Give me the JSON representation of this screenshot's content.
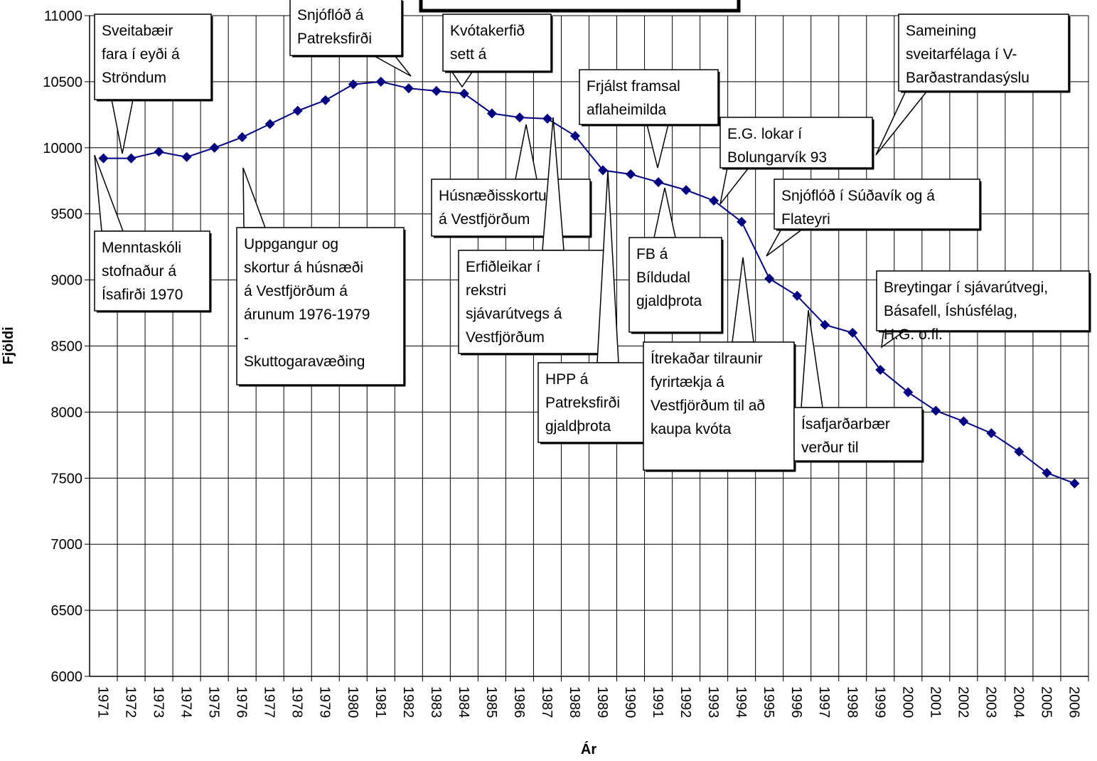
{
  "chart_data": {
    "type": "line",
    "xlabel": "Ár",
    "ylabel": "Fjöldi",
    "categories": [
      "1971",
      "1972",
      "1973",
      "1974",
      "1975",
      "1976",
      "1977",
      "1978",
      "1979",
      "1980",
      "1981",
      "1982",
      "1983",
      "1984",
      "1985",
      "1986",
      "1987",
      "1988",
      "1989",
      "1990",
      "1991",
      "1992",
      "1993",
      "1994",
      "1995",
      "1996",
      "1997",
      "1998",
      "1999",
      "2000",
      "2001",
      "2002",
      "2003",
      "2004",
      "2005",
      "2006"
    ],
    "series": [
      {
        "color": "#000080",
        "values": [
          9920,
          9920,
          9970,
          9930,
          10000,
          10080,
          10180,
          10280,
          10360,
          10480,
          10500,
          10450,
          10430,
          10410,
          10260,
          10230,
          10220,
          10090,
          9830,
          9800,
          9740,
          9680,
          9600,
          9440,
          9010,
          8880,
          8660,
          8600,
          8320,
          8150,
          8010,
          7930,
          7840,
          7700,
          7540,
          7460
        ]
      }
    ],
    "ylim": [
      6000,
      11000
    ],
    "yticks": [
      6000,
      6500,
      7000,
      7500,
      8000,
      8500,
      9000,
      9500,
      10000,
      10500,
      11000
    ],
    "grid": true,
    "annotations": [
      [
        "Sveitabæir",
        "fara í eyði á",
        "Ströndum"
      ],
      [
        "Snjóflóð á",
        "Patreksfirði"
      ],
      [
        "Kvótakerfið",
        "sett á"
      ],
      [
        "Sameining",
        "sveitarfélaga í V-",
        "Barðastrandasýslu"
      ],
      [
        "Frjálst framsal",
        "aflaheimilda"
      ],
      [
        "E.G. lokar í",
        "Bolungarvík 93"
      ],
      [
        "Menntaskóli",
        "stofnaður á",
        "Ísafirði 1970"
      ],
      [
        "Uppgangur og",
        "skortur á húsnæði",
        "á Vestfjörðum á",
        "árunum 1976-1979",
        "-",
        "Skuttogaravæðing"
      ],
      [
        "Húsnæðisskortur",
        "á Vestfjörðum"
      ],
      [
        "Erfiðleikar í",
        "rekstri",
        "sjávarútvegs á",
        "Vestfjörðum"
      ],
      [
        "HPP á",
        "Patreksfirði",
        "gjaldþrota"
      ],
      [
        "FB á",
        "Bíldudal",
        "gjaldþrota"
      ],
      [
        "Snjóflóð í Súðavík og á",
        "Flateyri"
      ],
      [
        "Ítrekaðar tilraunir",
        "fyrirtækja á",
        "Vestfjörðum til að",
        "kaupa kvóta"
      ],
      [
        "Ísafjarðarbær",
        "verður til"
      ],
      [
        "Breytingar í sjávarútvegi,",
        "Básafell, Íshúsfélag,",
        "H.G. o.fl."
      ]
    ]
  }
}
